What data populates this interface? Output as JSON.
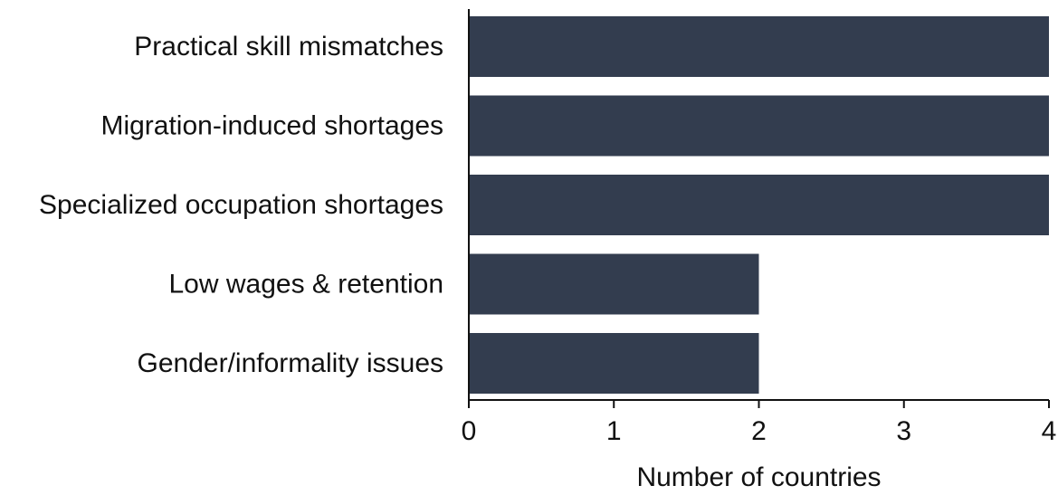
{
  "chart_data": {
    "type": "bar",
    "orientation": "horizontal",
    "categories": [
      "Practical skill mismatches",
      "Migration-induced shortages",
      "Specialized occupation shortages",
      "Low wages & retention",
      "Gender/informality issues"
    ],
    "values": [
      4,
      4,
      4,
      2,
      2
    ],
    "xlabel": "Number of countries",
    "ylabel": "",
    "xlim": [
      0,
      4
    ],
    "xticks": [
      "0",
      "1",
      "2",
      "3",
      "4"
    ],
    "grid": false,
    "legend": "none",
    "bar_color": "#333d4f",
    "axis_color": "#111111"
  }
}
